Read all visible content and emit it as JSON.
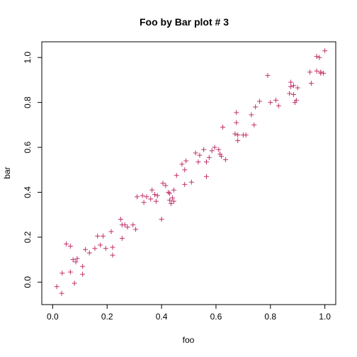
{
  "chart_data": {
    "type": "scatter",
    "title": "Foo by Bar plot # 3",
    "xlabel": "foo",
    "ylabel": "bar",
    "xlim": [
      -0.04,
      1.04
    ],
    "ylim": [
      -0.1,
      1.07
    ],
    "xticks": [
      0.0,
      0.2,
      0.4,
      0.6,
      0.8,
      1.0
    ],
    "xtick_labels": [
      "0.0",
      "0.2",
      "0.4",
      "0.6",
      "0.8",
      "1.0"
    ],
    "yticks": [
      0.0,
      0.2,
      0.4,
      0.6,
      0.8,
      1.0
    ],
    "ytick_labels": [
      "0.0",
      "0.2",
      "0.4",
      "0.6",
      "0.8",
      "1.0"
    ],
    "marker": "+",
    "color": "#c0306a",
    "grid": false,
    "points": [
      [
        0.015,
        -0.02
      ],
      [
        0.033,
        -0.05
      ],
      [
        0.035,
        0.04
      ],
      [
        0.05,
        0.17
      ],
      [
        0.065,
        0.16
      ],
      [
        0.065,
        0.045
      ],
      [
        0.075,
        0.1
      ],
      [
        0.08,
        -0.005
      ],
      [
        0.085,
        0.09
      ],
      [
        0.09,
        0.105
      ],
      [
        0.11,
        0.035
      ],
      [
        0.11,
        0.07
      ],
      [
        0.12,
        0.145
      ],
      [
        0.135,
        0.13
      ],
      [
        0.155,
        0.15
      ],
      [
        0.165,
        0.205
      ],
      [
        0.175,
        0.165
      ],
      [
        0.185,
        0.205
      ],
      [
        0.195,
        0.15
      ],
      [
        0.215,
        0.225
      ],
      [
        0.22,
        0.155
      ],
      [
        0.22,
        0.12
      ],
      [
        0.25,
        0.28
      ],
      [
        0.255,
        0.255
      ],
      [
        0.255,
        0.195
      ],
      [
        0.265,
        0.255
      ],
      [
        0.275,
        0.245
      ],
      [
        0.295,
        0.255
      ],
      [
        0.305,
        0.235
      ],
      [
        0.31,
        0.38
      ],
      [
        0.33,
        0.385
      ],
      [
        0.335,
        0.355
      ],
      [
        0.345,
        0.38
      ],
      [
        0.36,
        0.37
      ],
      [
        0.365,
        0.41
      ],
      [
        0.375,
        0.39
      ],
      [
        0.38,
        0.36
      ],
      [
        0.385,
        0.385
      ],
      [
        0.4,
        0.28
      ],
      [
        0.405,
        0.44
      ],
      [
        0.415,
        0.43
      ],
      [
        0.425,
        0.4
      ],
      [
        0.43,
        0.395
      ],
      [
        0.43,
        0.365
      ],
      [
        0.435,
        0.35
      ],
      [
        0.44,
        0.375
      ],
      [
        0.445,
        0.36
      ],
      [
        0.445,
        0.41
      ],
      [
        0.455,
        0.475
      ],
      [
        0.475,
        0.525
      ],
      [
        0.485,
        0.5
      ],
      [
        0.485,
        0.435
      ],
      [
        0.49,
        0.54
      ],
      [
        0.51,
        0.445
      ],
      [
        0.525,
        0.575
      ],
      [
        0.535,
        0.535
      ],
      [
        0.54,
        0.565
      ],
      [
        0.555,
        0.59
      ],
      [
        0.565,
        0.47
      ],
      [
        0.565,
        0.535
      ],
      [
        0.575,
        0.555
      ],
      [
        0.585,
        0.585
      ],
      [
        0.595,
        0.6
      ],
      [
        0.61,
        0.59
      ],
      [
        0.615,
        0.57
      ],
      [
        0.62,
        0.56
      ],
      [
        0.625,
        0.69
      ],
      [
        0.635,
        0.545
      ],
      [
        0.67,
        0.66
      ],
      [
        0.675,
        0.755
      ],
      [
        0.675,
        0.71
      ],
      [
        0.68,
        0.63
      ],
      [
        0.68,
        0.655
      ],
      [
        0.7,
        0.655
      ],
      [
        0.71,
        0.655
      ],
      [
        0.73,
        0.745
      ],
      [
        0.74,
        0.7
      ],
      [
        0.745,
        0.78
      ],
      [
        0.76,
        0.805
      ],
      [
        0.79,
        0.92
      ],
      [
        0.8,
        0.8
      ],
      [
        0.82,
        0.81
      ],
      [
        0.83,
        0.785
      ],
      [
        0.87,
        0.84
      ],
      [
        0.875,
        0.89
      ],
      [
        0.875,
        0.87
      ],
      [
        0.885,
        0.875
      ],
      [
        0.885,
        0.835
      ],
      [
        0.89,
        0.8
      ],
      [
        0.895,
        0.81
      ],
      [
        0.9,
        0.865
      ],
      [
        0.945,
        0.935
      ],
      [
        0.95,
        0.885
      ],
      [
        0.97,
        0.94
      ],
      [
        0.97,
        1.005
      ],
      [
        0.98,
        1.0
      ],
      [
        0.985,
        0.93
      ],
      [
        0.985,
        0.935
      ],
      [
        0.995,
        0.93
      ],
      [
        1.0,
        1.03
      ]
    ]
  }
}
